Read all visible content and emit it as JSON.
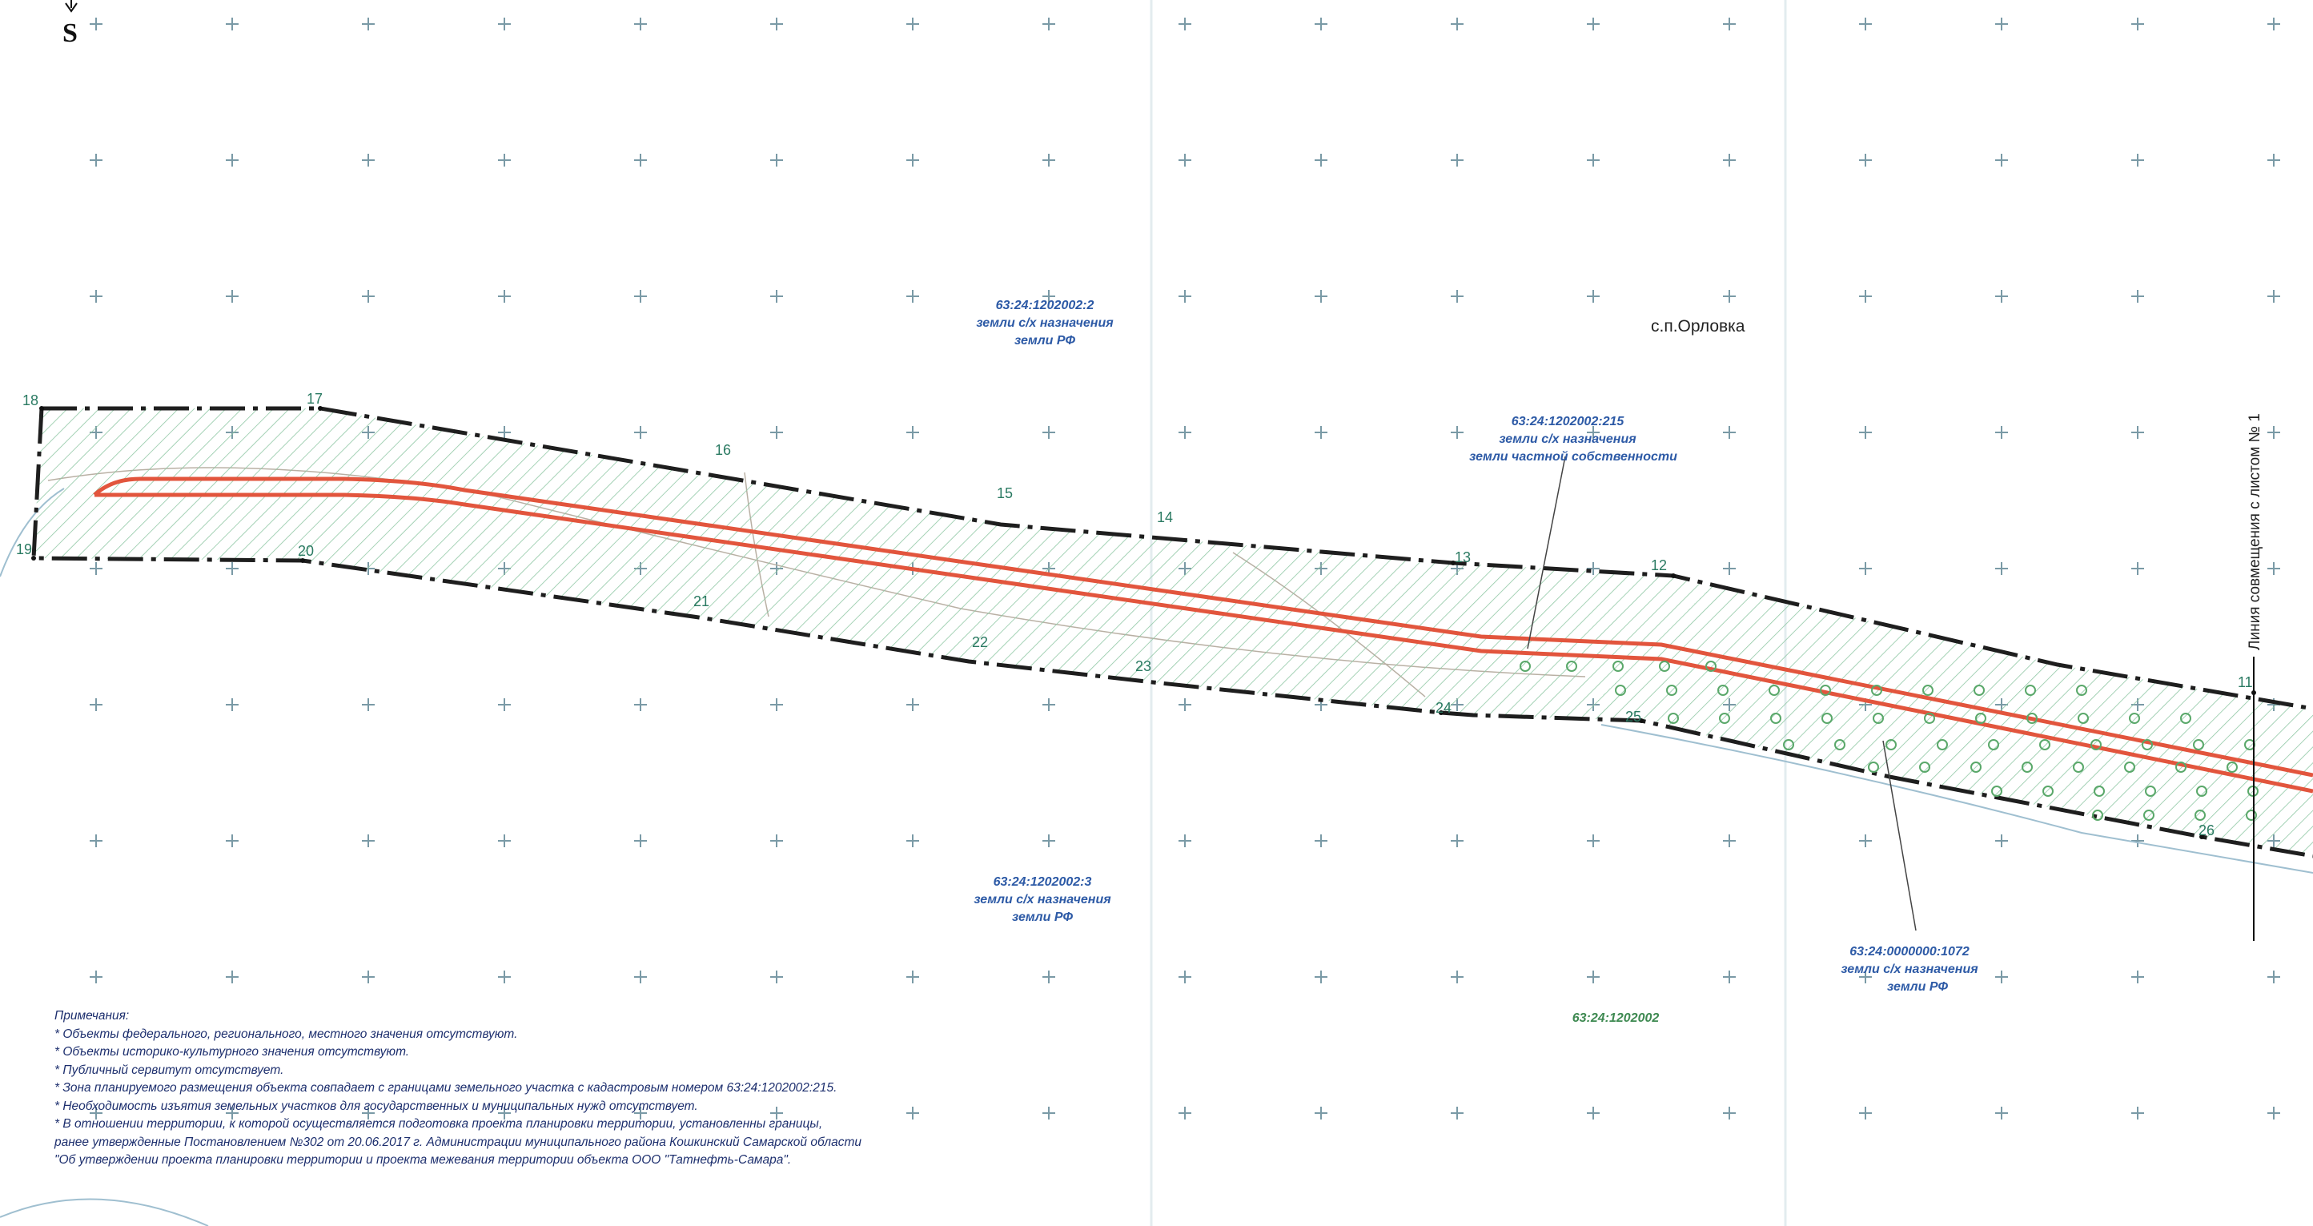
{
  "compass": {
    "letter": "S"
  },
  "settlement": "с.п.Орловка",
  "sheet_link_label": "Линия совмещения с листом № 1",
  "point_labels": {
    "p11": "11",
    "p12": "12",
    "p13": "13",
    "p14": "14",
    "p15": "15",
    "p16": "16",
    "p17": "17",
    "p18": "18",
    "p19": "19",
    "p20": "20",
    "p21": "21",
    "p22": "22",
    "p23": "23",
    "p24": "24",
    "p25": "25",
    "p26": "26"
  },
  "parcels": {
    "north": {
      "id": "63:24:1202002:2",
      "line1": "земли с/х назначения",
      "line2": "земли РФ"
    },
    "private": {
      "id": "63:24:1202002:215",
      "line1": "земли с/х назначения",
      "line2": "земли частной собственности"
    },
    "south": {
      "id": "63:24:1202002:3",
      "line1": "земли с/х назначения",
      "line2": "земли РФ"
    },
    "east": {
      "id": "63:24:0000000:1072",
      "line1": "земли с/х назначения",
      "line2": "земли РФ"
    },
    "quarter": {
      "id": "63:24:1202002"
    }
  },
  "notes": {
    "title": "Примечания:",
    "items": [
      "* Объекты федерального, регионального, местного значения отсутствуют.",
      "* Объекты историко-культурного значения отсутствуют.",
      "* Публичный сервитут отсутствует.",
      "* Зона планируемого размещения объекта совпадает с границами земельного участка с кадастровым номером 63:24:1202002:215.",
      "* Необходимость изъятия земельных участков для государственных и муниципальных нужд отсутствует.",
      "* В отношении территории, к которой осуществляется подготовка проекта планировки территории, установленны границы,",
      "ранее утвержденные Постановлением №302 от 20.06.2017 г. Администрации муниципального района Кошкинский Самарской области",
      "\"Об утверждении проекта планировки территории и проекта межевания территории объекта ООО \"Татнефть-Самара\"."
    ]
  },
  "colors": {
    "boundary": "#1e1e1e",
    "pipeline": "#e2553d",
    "hatch": "#8fc7a4",
    "point_label": "#2a7a62",
    "parcel_label": "#2d5aa6",
    "notes_text": "#1d2f6e"
  },
  "icons": [
    "north-arrow-icon",
    "grid-cross-icon",
    "tree-circle-icon"
  ]
}
